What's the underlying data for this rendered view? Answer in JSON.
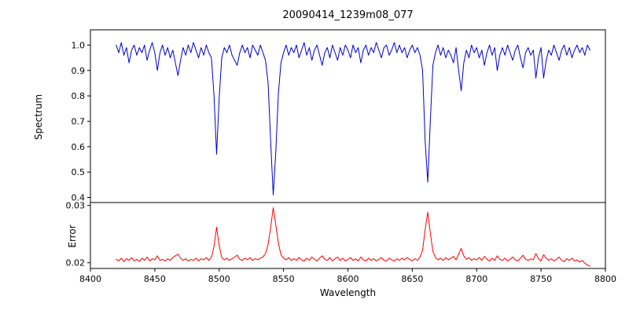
{
  "colors": {
    "spectrum_line": "#0000cd",
    "error_line": "#ff0000",
    "axis": "#000000",
    "background": "#ffffff"
  },
  "chart_data": {
    "type": "line",
    "title": "20090414_1239m08_077",
    "xlabel": "Wavelength",
    "grid": false,
    "legend": "none",
    "xlim": [
      8400,
      8800
    ],
    "x_start": 8420,
    "x_step": 2,
    "x_ticks": [
      8400,
      8450,
      8500,
      8550,
      8600,
      8650,
      8700,
      8750,
      8800
    ],
    "x_tick_labels": [
      "8400",
      "8450",
      "8500",
      "8550",
      "8600",
      "8650",
      "8700",
      "8750",
      "8800"
    ],
    "panels": [
      {
        "name": "spectrum",
        "ylabel": "Spectrum",
        "color": "#0000cd",
        "ylim": [
          0.38,
          1.06
        ],
        "y_ticks": [
          0.4,
          0.5,
          0.6,
          0.7,
          0.8,
          0.9,
          1.0
        ],
        "y_tick_labels": [
          "0.4",
          "0.5",
          "0.6",
          "0.7",
          "0.8",
          "0.9",
          "1.0"
        ],
        "values": [
          1.0,
          0.97,
          1.01,
          0.96,
          0.99,
          0.93,
          0.98,
          1.0,
          0.96,
          0.99,
          0.97,
          1.0,
          0.94,
          0.98,
          1.01,
          0.97,
          0.9,
          0.97,
          1.0,
          0.96,
          0.99,
          0.95,
          0.98,
          0.93,
          0.88,
          0.94,
          0.99,
          0.96,
          1.0,
          0.97,
          1.01,
          0.98,
          0.95,
          0.99,
          0.96,
          1.0,
          0.97,
          0.95,
          0.8,
          0.57,
          0.79,
          0.95,
          0.99,
          0.97,
          1.0,
          0.96,
          0.94,
          0.92,
          0.97,
          1.0,
          0.97,
          0.99,
          0.95,
          1.0,
          0.98,
          0.96,
          1.0,
          0.97,
          0.94,
          0.85,
          0.62,
          0.41,
          0.58,
          0.81,
          0.93,
          0.97,
          1.0,
          0.96,
          0.99,
          0.97,
          1.0,
          0.95,
          0.98,
          1.01,
          0.96,
          0.99,
          0.94,
          0.98,
          1.0,
          0.96,
          0.92,
          0.97,
          0.99,
          0.95,
          1.0,
          0.97,
          0.94,
          0.99,
          0.96,
          1.0,
          0.98,
          0.95,
          1.0,
          0.97,
          0.99,
          0.93,
          0.98,
          1.0,
          0.96,
          0.99,
          0.97,
          1.01,
          0.98,
          0.95,
          0.99,
          1.0,
          0.96,
          0.98,
          1.01,
          0.97,
          1.0,
          0.97,
          0.99,
          0.95,
          0.98,
          1.0,
          0.97,
          0.99,
          0.96,
          0.9,
          0.62,
          0.46,
          0.7,
          0.92,
          0.97,
          1.0,
          0.96,
          0.99,
          0.95,
          0.98,
          0.96,
          0.93,
          0.99,
          0.9,
          0.82,
          0.93,
          0.98,
          0.95,
          1.0,
          0.97,
          0.99,
          0.95,
          0.98,
          0.92,
          0.97,
          1.0,
          0.96,
          0.99,
          0.9,
          0.96,
          0.99,
          0.96,
          1.0,
          0.97,
          0.94,
          0.98,
          1.0,
          0.95,
          0.91,
          0.97,
          0.99,
          0.96,
          0.98,
          0.87,
          0.95,
          0.99,
          0.87,
          0.94,
          0.98,
          0.96,
          1.0,
          0.97,
          0.94,
          0.98,
          1.0,
          0.96,
          0.99,
          0.95,
          0.98,
          1.0,
          0.97,
          0.99,
          0.96,
          1.0,
          0.98
        ]
      },
      {
        "name": "error",
        "ylabel": "Error",
        "color": "#ff0000",
        "ylim": [
          0.019,
          0.0305
        ],
        "y_ticks": [
          0.02,
          0.03
        ],
        "y_tick_labels": [
          "0.02",
          "0.03"
        ],
        "values": [
          0.0206,
          0.0203,
          0.0208,
          0.0202,
          0.0207,
          0.0204,
          0.0209,
          0.0203,
          0.0206,
          0.0202,
          0.0208,
          0.0204,
          0.021,
          0.0203,
          0.0207,
          0.0205,
          0.0212,
          0.0204,
          0.0206,
          0.0203,
          0.0207,
          0.0204,
          0.0209,
          0.0212,
          0.0215,
          0.0208,
          0.0204,
          0.0207,
          0.0203,
          0.0206,
          0.0204,
          0.0208,
          0.0203,
          0.0207,
          0.0205,
          0.0209,
          0.0204,
          0.021,
          0.0228,
          0.0262,
          0.023,
          0.0209,
          0.0205,
          0.0208,
          0.0204,
          0.0207,
          0.021,
          0.0213,
          0.0206,
          0.0204,
          0.0208,
          0.0205,
          0.0209,
          0.0204,
          0.0207,
          0.0205,
          0.0208,
          0.021,
          0.0216,
          0.0232,
          0.0262,
          0.0296,
          0.0266,
          0.0234,
          0.0214,
          0.0208,
          0.0205,
          0.0209,
          0.0204,
          0.0207,
          0.0204,
          0.0209,
          0.0205,
          0.0203,
          0.0208,
          0.0204,
          0.021,
          0.0206,
          0.0203,
          0.0208,
          0.0212,
          0.0206,
          0.0204,
          0.0209,
          0.0203,
          0.0207,
          0.021,
          0.0204,
          0.0208,
          0.0203,
          0.0206,
          0.0209,
          0.0204,
          0.0207,
          0.0203,
          0.021,
          0.0205,
          0.0203,
          0.0208,
          0.0204,
          0.0207,
          0.0203,
          0.0206,
          0.0209,
          0.0204,
          0.0203,
          0.0208,
          0.0205,
          0.0203,
          0.0207,
          0.0204,
          0.0208,
          0.0205,
          0.0209,
          0.0206,
          0.0203,
          0.0207,
          0.0204,
          0.021,
          0.0222,
          0.0258,
          0.0288,
          0.0252,
          0.022,
          0.0209,
          0.0205,
          0.0208,
          0.0204,
          0.0209,
          0.0205,
          0.0208,
          0.0211,
          0.0205,
          0.0215,
          0.0225,
          0.0212,
          0.0206,
          0.0209,
          0.0204,
          0.0207,
          0.0205,
          0.0209,
          0.0204,
          0.0211,
          0.0206,
          0.0203,
          0.0208,
          0.0204,
          0.0212,
          0.0206,
          0.0204,
          0.0208,
          0.0203,
          0.0206,
          0.021,
          0.0205,
          0.0203,
          0.0208,
          0.0213,
          0.0206,
          0.0204,
          0.0207,
          0.0205,
          0.0216,
          0.0207,
          0.0203,
          0.0214,
          0.0208,
          0.0204,
          0.0207,
          0.0203,
          0.0206,
          0.021,
          0.0204,
          0.0202,
          0.0207,
          0.0204,
          0.0208,
          0.0203,
          0.0205,
          0.0201,
          0.0204,
          0.0199,
          0.0196,
          0.0194
        ]
      }
    ]
  }
}
